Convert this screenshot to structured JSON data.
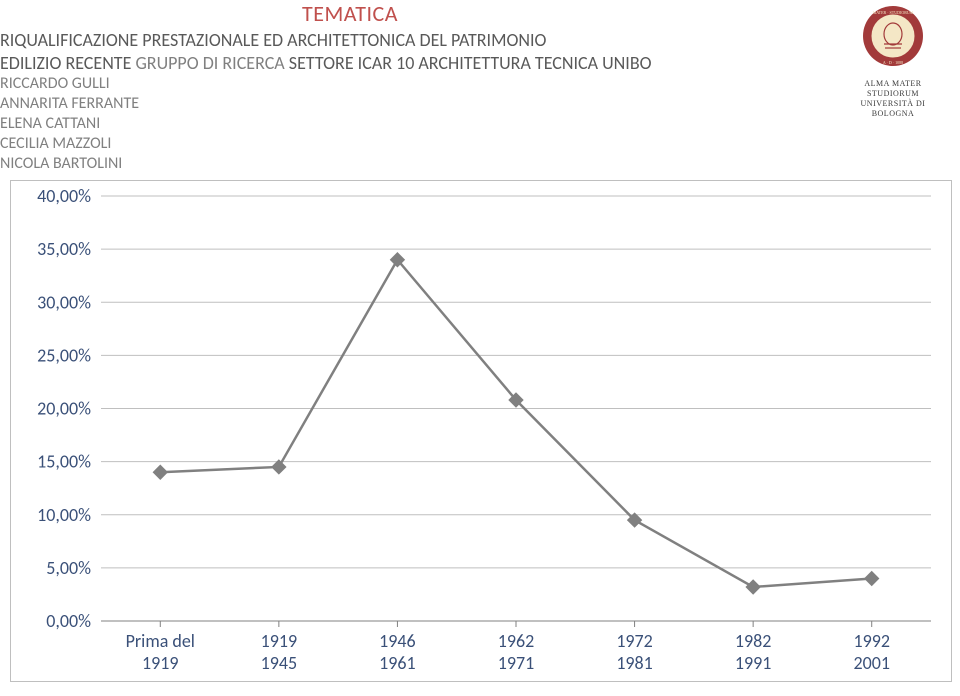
{
  "header": {
    "tematica": "TEMATICA",
    "title_line1": "RIQUALIFICAZIONE PRESTAZIONALE ED ARCHITETTONICA DEL PATRIMONIO",
    "title_line2_a": "EDILIZIO RECENTE ",
    "title_line2_b": "GRUPPO DI RICERCA  ",
    "title_line2_c": "SETTORE ICAR 10 ARCHITETTURA TECNICA UNIBO",
    "names": [
      "RICCARDO GULLI",
      "ANNARITA FERRANTE",
      "ELENA CATTANI",
      "CECILIA MAZZOLI",
      "NICOLA BARTOLINI"
    ]
  },
  "logo": {
    "line1": "ALMA MATER STUDIORUM",
    "line2": "UNIVERSITÀ DI BOLOGNA",
    "seal_outer": "#a23a3a",
    "seal_inner": "#f4e7c6"
  },
  "chart": {
    "type": "line",
    "background_color": "#ffffff",
    "grid_color": "#bfbfbf",
    "axis_color": "#808080",
    "series_color": "#808080",
    "label_color": "#3a5078",
    "label_fontsize": 18,
    "line_width": 2.5,
    "marker": "diamond",
    "marker_size": 7,
    "ylim": [
      0,
      40
    ],
    "ytick_step": 5,
    "ylabels": [
      "0,00%",
      "5,00%",
      "10,00%",
      "15,00%",
      "20,00%",
      "25,00%",
      "30,00%",
      "35,00%",
      "40,00%"
    ],
    "categories": [
      [
        "Prima del",
        "1919"
      ],
      [
        "1919",
        "1945"
      ],
      [
        "1946",
        "1961"
      ],
      [
        "1962",
        "1971"
      ],
      [
        "1972",
        "1981"
      ],
      [
        "1982",
        "1991"
      ],
      [
        "1992",
        "2001"
      ]
    ],
    "values": [
      14.0,
      14.5,
      34.0,
      20.8,
      9.5,
      3.2,
      4.0
    ]
  }
}
